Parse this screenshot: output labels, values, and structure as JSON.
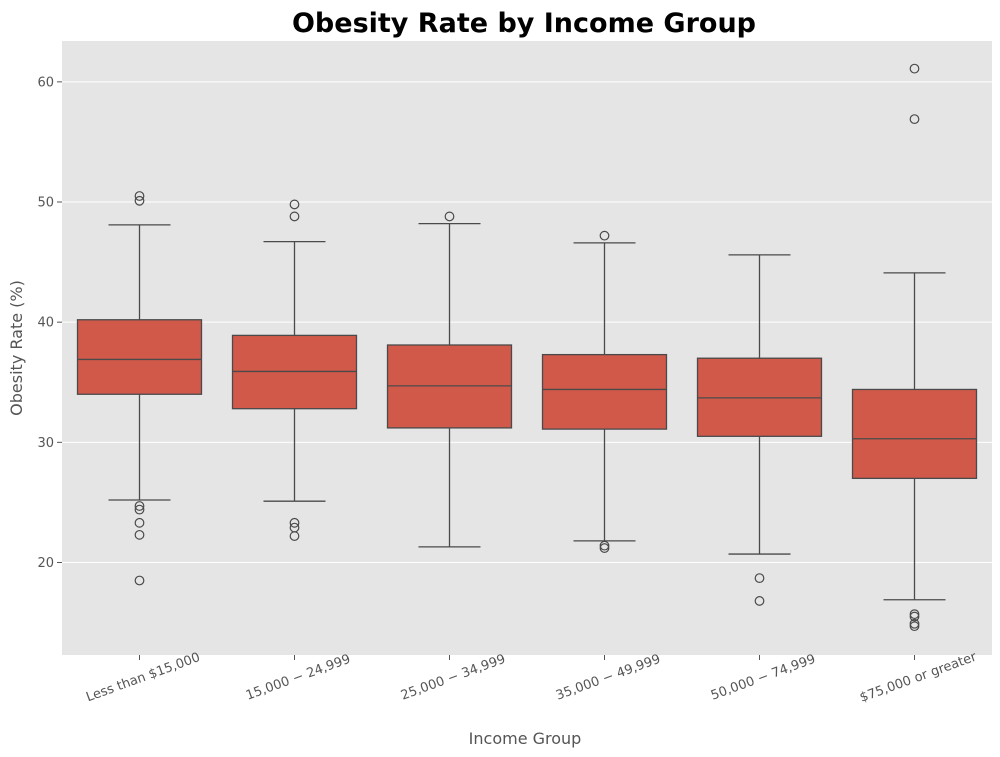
{
  "chart_data": {
    "type": "box",
    "title": "Obesity Rate by Income Group",
    "xlabel": "Income Group",
    "ylabel": "Obesity Rate (%)",
    "ylim": [
      12.3,
      63.4
    ],
    "yticks": [
      20,
      30,
      40,
      50,
      60
    ],
    "ytick_labels": [
      "20",
      "30",
      "40",
      "50",
      "60"
    ],
    "grid": true,
    "legend": "none",
    "colors": {
      "box": "#d1594a",
      "background": "#e5e5e5",
      "grid": "#ffffff",
      "lines": "#4a4a4a"
    },
    "categories": [
      "Less than $15,000",
      "15,000 − 24,999",
      "25,000 − 34,999",
      "35,000 − 49,999",
      "50,000 − 74,999",
      "$75,000 or greater"
    ],
    "boxes": [
      {
        "whisker_low": 25.2,
        "q1": 34.0,
        "median": 36.9,
        "q3": 40.2,
        "whisker_high": 48.1,
        "outliers": [
          50.5,
          50.1,
          24.7,
          24.4,
          23.3,
          22.3,
          18.5
        ]
      },
      {
        "whisker_low": 25.1,
        "q1": 32.8,
        "median": 35.9,
        "q3": 38.9,
        "whisker_high": 46.7,
        "outliers": [
          49.8,
          48.8,
          23.3,
          22.9,
          22.2
        ]
      },
      {
        "whisker_low": 21.3,
        "q1": 31.2,
        "median": 34.7,
        "q3": 38.1,
        "whisker_high": 48.2,
        "outliers": [
          48.8
        ]
      },
      {
        "whisker_low": 21.8,
        "q1": 31.1,
        "median": 34.4,
        "q3": 37.3,
        "whisker_high": 46.6,
        "outliers": [
          47.2,
          21.4,
          21.2
        ]
      },
      {
        "whisker_low": 20.7,
        "q1": 30.5,
        "median": 33.7,
        "q3": 37.0,
        "whisker_high": 45.6,
        "outliers": [
          18.7,
          16.8
        ]
      },
      {
        "whisker_low": 16.9,
        "q1": 27.0,
        "median": 30.3,
        "q3": 34.4,
        "whisker_high": 44.1,
        "outliers": [
          61.1,
          56.9,
          15.7,
          15.5,
          14.9,
          14.7
        ]
      }
    ]
  }
}
